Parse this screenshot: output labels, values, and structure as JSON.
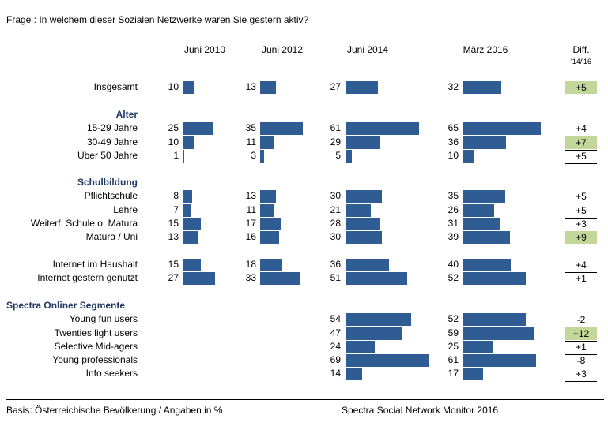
{
  "question": "Frage  : In welchem dieser Sozialen Netzwerke waren Sie gestern aktiv?",
  "chart_data": {
    "type": "bar",
    "columns": [
      "Juni 2010",
      "Juni 2012",
      "Juni 2014",
      "März 2016"
    ],
    "diff_header": "Diff.",
    "diff_subheader": "'14/'16",
    "highlight_color": "#c4d79b",
    "bar_color": "#2e5c93",
    "rows": [
      {
        "section": null,
        "label": "Insgesamt",
        "values": [
          10,
          13,
          27,
          32
        ],
        "diff": "+5",
        "highlight": true
      },
      {
        "section": "Alter",
        "label": "15-29 Jahre",
        "values": [
          25,
          35,
          61,
          65
        ],
        "diff": "+4",
        "highlight": false
      },
      {
        "section": "Alter",
        "label": "30-49 Jahre",
        "values": [
          10,
          11,
          29,
          36
        ],
        "diff": "+7",
        "highlight": true
      },
      {
        "section": "Alter",
        "label": "Über 50 Jahre",
        "values": [
          1,
          3,
          5,
          10
        ],
        "diff": "+5",
        "highlight": false
      },
      {
        "section": "Schulbildung",
        "label": "Pflichtschule",
        "values": [
          8,
          13,
          30,
          35
        ],
        "diff": "+5",
        "highlight": false
      },
      {
        "section": "Schulbildung",
        "label": "Lehre",
        "values": [
          7,
          11,
          21,
          26
        ],
        "diff": "+5",
        "highlight": false
      },
      {
        "section": "Schulbildung",
        "label": "Weiterf. Schule o. Matura",
        "values": [
          15,
          17,
          28,
          31
        ],
        "diff": "+3",
        "highlight": false
      },
      {
        "section": "Schulbildung",
        "label": "Matura / Uni",
        "values": [
          13,
          16,
          30,
          39
        ],
        "diff": "+9",
        "highlight": true
      },
      {
        "section": null,
        "label": "Internet im Haushalt",
        "values": [
          15,
          18,
          36,
          40
        ],
        "diff": "+4",
        "highlight": false
      },
      {
        "section": null,
        "label": "Internet gestern genutzt",
        "values": [
          27,
          33,
          51,
          52
        ],
        "diff": "+1",
        "highlight": false
      },
      {
        "section": "Spectra Onliner Segmente",
        "label": "Young fun users",
        "values": [
          null,
          null,
          54,
          52
        ],
        "diff": "-2",
        "highlight": false
      },
      {
        "section": "Spectra Onliner Segmente",
        "label": "Twenties light users",
        "values": [
          null,
          null,
          47,
          59
        ],
        "diff": "+12",
        "highlight": true
      },
      {
        "section": "Spectra Onliner Segmente",
        "label": "Selective Mid-agers",
        "values": [
          null,
          null,
          24,
          25
        ],
        "diff": "+1",
        "highlight": false
      },
      {
        "section": "Spectra Onliner Segmente",
        "label": "Young professionals",
        "values": [
          null,
          null,
          69,
          61
        ],
        "diff": "-8",
        "highlight": false
      },
      {
        "section": "Spectra Onliner Segmente",
        "label": "Info seekers",
        "values": [
          null,
          null,
          14,
          17
        ],
        "diff": "+3",
        "highlight": false
      }
    ]
  },
  "sections": [
    "Alter",
    "Schulbildung",
    "Spectra Onliner Segmente"
  ],
  "footer": {
    "basis": "Basis: Österreichische Bevölkerung / Angaben in %",
    "source": "Spectra Social Network Monitor 2016"
  }
}
